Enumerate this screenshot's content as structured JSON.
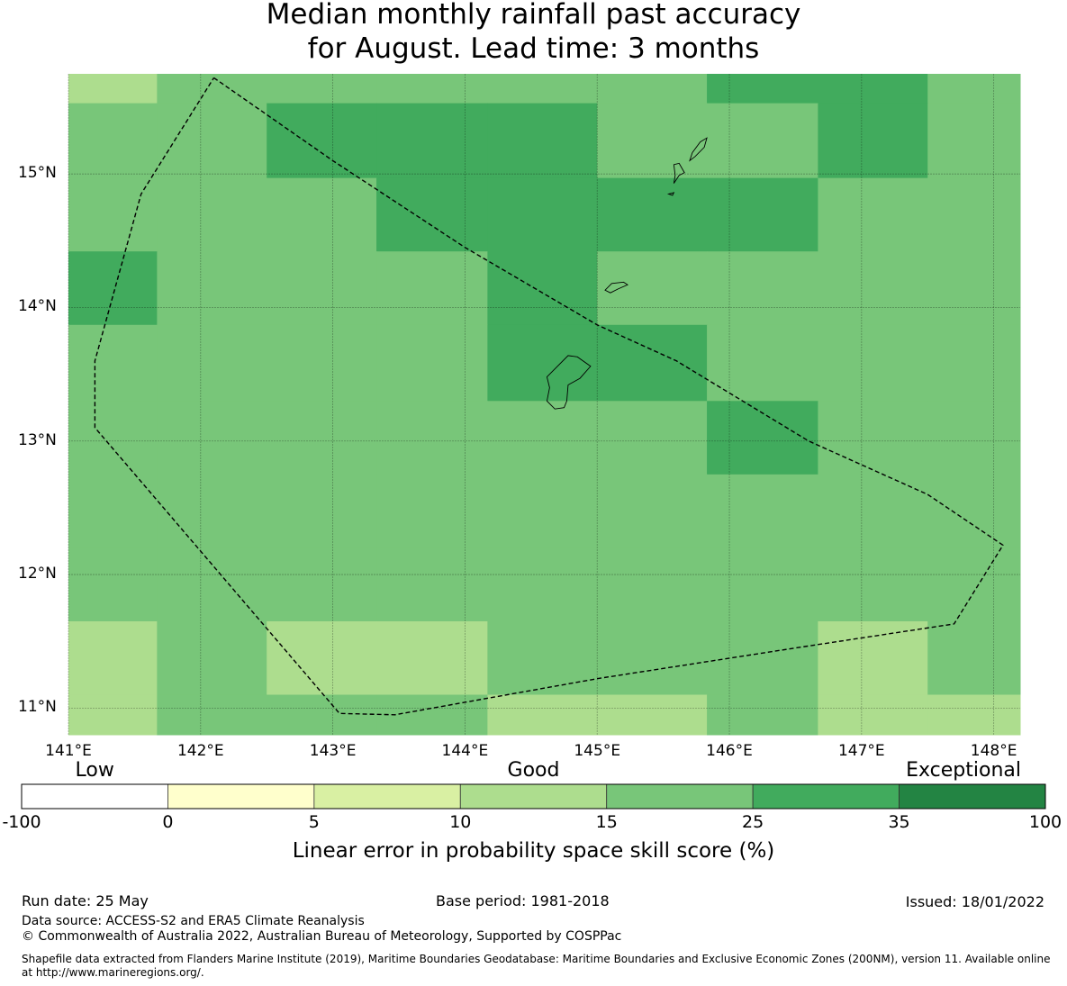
{
  "title_line1": "Median monthly rainfall past accuracy",
  "title_line2": "for August. Lead time: 3 months",
  "map": {
    "lon_range": [
      141.0,
      148.2
    ],
    "lat_range": [
      10.8,
      15.75
    ],
    "lat_ticks": [
      {
        "value": 15,
        "label": "15°N"
      },
      {
        "value": 14,
        "label": "14°N"
      },
      {
        "value": 13,
        "label": "13°N"
      },
      {
        "value": 12,
        "label": "12°N"
      },
      {
        "value": 11,
        "label": "11°N"
      }
    ],
    "lon_ticks": [
      {
        "value": 141,
        "label": "141°E"
      },
      {
        "value": 142,
        "label": "142°E"
      },
      {
        "value": 143,
        "label": "143°E"
      },
      {
        "value": 144,
        "label": "144°E"
      },
      {
        "value": 145,
        "label": "145°E"
      },
      {
        "value": 146,
        "label": "146°E"
      },
      {
        "value": 147,
        "label": "147°E"
      },
      {
        "value": 148,
        "label": "148°E"
      }
    ],
    "grid": "on",
    "cell_lon_edges": [
      141.0,
      141.67,
      142.5,
      143.33,
      144.17,
      145.0,
      145.83,
      146.67,
      147.5,
      148.2
    ],
    "cell_lat_edges": [
      15.75,
      15.53,
      14.97,
      14.42,
      13.87,
      13.3,
      12.75,
      12.2,
      11.65,
      11.1,
      10.8
    ],
    "cell_categories": [
      [
        3,
        4,
        4,
        4,
        4,
        4,
        5,
        5,
        4
      ],
      [
        4,
        4,
        5,
        5,
        5,
        4,
        4,
        5,
        4
      ],
      [
        4,
        4,
        4,
        5,
        5,
        5,
        5,
        4,
        4
      ],
      [
        5,
        4,
        4,
        4,
        5,
        4,
        4,
        4,
        4
      ],
      [
        4,
        4,
        4,
        4,
        5,
        5,
        4,
        4,
        4
      ],
      [
        4,
        4,
        4,
        4,
        4,
        4,
        5,
        4,
        4
      ],
      [
        4,
        4,
        4,
        4,
        4,
        4,
        4,
        4,
        4
      ],
      [
        4,
        4,
        4,
        4,
        4,
        4,
        4,
        4,
        4
      ],
      [
        3,
        4,
        3,
        3,
        4,
        4,
        4,
        3,
        4
      ],
      [
        3,
        4,
        4,
        4,
        3,
        3,
        4,
        3,
        3
      ]
    ],
    "eez_boundary": [
      [
        142.1,
        15.72
      ],
      [
        143.0,
        15.1
      ],
      [
        144.0,
        14.45
      ],
      [
        145.0,
        13.87
      ],
      [
        145.6,
        13.6
      ],
      [
        146.6,
        13.0
      ],
      [
        147.5,
        12.6
      ],
      [
        148.07,
        12.22
      ],
      [
        147.7,
        11.63
      ],
      [
        146.5,
        11.45
      ],
      [
        145.0,
        11.22
      ],
      [
        143.47,
        10.95
      ],
      [
        143.05,
        10.96
      ],
      [
        141.2,
        13.1
      ],
      [
        141.2,
        13.6
      ],
      [
        141.55,
        14.85
      ],
      [
        142.1,
        15.72
      ]
    ],
    "islands": [
      [
        [
          144.62,
          13.48
        ],
        [
          144.78,
          13.64
        ],
        [
          144.85,
          13.63
        ],
        [
          144.95,
          13.56
        ],
        [
          144.87,
          13.47
        ],
        [
          144.78,
          13.42
        ],
        [
          144.77,
          13.3
        ],
        [
          144.75,
          13.25
        ],
        [
          144.68,
          13.24
        ],
        [
          144.62,
          13.3
        ],
        [
          144.64,
          13.4
        ]
      ],
      [
        [
          145.06,
          14.13
        ],
        [
          145.11,
          14.18
        ],
        [
          145.2,
          14.19
        ],
        [
          145.23,
          14.17
        ],
        [
          145.16,
          14.14
        ],
        [
          145.1,
          14.11
        ]
      ],
      [
        [
          145.58,
          14.93
        ],
        [
          145.62,
          14.99
        ],
        [
          145.66,
          15.01
        ],
        [
          145.62,
          15.08
        ],
        [
          145.58,
          15.07
        ],
        [
          145.59,
          14.99
        ]
      ],
      [
        [
          145.7,
          15.1
        ],
        [
          145.72,
          15.16
        ],
        [
          145.78,
          15.24
        ],
        [
          145.83,
          15.27
        ],
        [
          145.81,
          15.2
        ],
        [
          145.74,
          15.13
        ]
      ],
      [
        [
          145.54,
          14.85
        ],
        [
          145.58,
          14.86
        ],
        [
          145.57,
          14.84
        ]
      ]
    ]
  },
  "colorbar": {
    "categories": [
      {
        "label": "Low",
        "at": 0.5
      },
      {
        "label": "Good",
        "at": 3.5
      },
      {
        "label": "Exceptional",
        "at": 6.3
      }
    ],
    "ticks": [
      "-100",
      "0",
      "5",
      "10",
      "15",
      "25",
      "35",
      "100"
    ],
    "colors": [
      "#ffffff",
      "#ffffcc",
      "#d9f0a3",
      "#addd8e",
      "#78c679",
      "#41ab5d",
      "#238443"
    ],
    "label": "Linear error in probability space skill score (%)"
  },
  "footer": {
    "run_date": "Run date: 25 May",
    "base_period": "Base period: 1981-2018",
    "issued": "Issued: 18/01/2022",
    "data_source": "Data source: ACCESS-S2 and ERA5 Climate Reanalysis",
    "copyright": "© Commonwealth of Australia 2022, Australian Bureau of Meteorology, Supported by COSPPac",
    "shapefile_credit": "Shapefile data extracted from Flanders Marine Institute (2019), Maritime Boundaries Geodatabase: Maritime Boundaries and Exclusive Economic Zones (200NM), version 11. Available online at http://www.marineregions.org/."
  }
}
